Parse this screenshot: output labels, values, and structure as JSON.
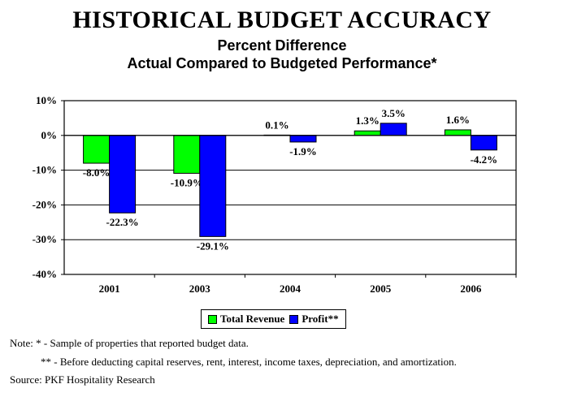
{
  "title": "HISTORICAL BUDGET ACCURACY",
  "subtitle1": "Percent Difference",
  "subtitle2": "Actual Compared to Budgeted Performance*",
  "colors": {
    "total_revenue": "#00ff00",
    "profit": "#0000ff"
  },
  "chart_data": {
    "type": "bar",
    "categories": [
      "2001",
      "2003",
      "2004",
      "2005",
      "2006"
    ],
    "series": [
      {
        "name": "Total Revenue",
        "values": [
          -8.0,
          -10.9,
          0.1,
          1.3,
          1.6
        ],
        "labels": [
          "-8.0%",
          "-10.9%",
          "0.1%",
          "1.3%",
          "1.6%"
        ]
      },
      {
        "name": "Profit**",
        "values": [
          -22.3,
          -29.1,
          -1.9,
          3.5,
          -4.2
        ],
        "labels": [
          "-22.3%",
          "-29.1%",
          "-1.9%",
          "3.5%",
          "-4.2%"
        ]
      }
    ],
    "ylim": [
      -40,
      10
    ],
    "yticks": [
      10,
      0,
      -10,
      -20,
      -30,
      -40
    ],
    "ytick_labels": [
      "10%",
      "0%",
      "-10%",
      "-20%",
      "-30%",
      "-40%"
    ],
    "grid": true,
    "legend_placement": "bottom"
  },
  "legend": {
    "revenue_label": "Total Revenue",
    "profit_label": "Profit**"
  },
  "notes": {
    "line1": "Note: * - Sample of properties that reported budget data.",
    "line2": "** - Before deducting capital reserves, rent, interest, income taxes, depreciation, and amortization.",
    "line3": "Source: PKF Hospitality Research"
  }
}
